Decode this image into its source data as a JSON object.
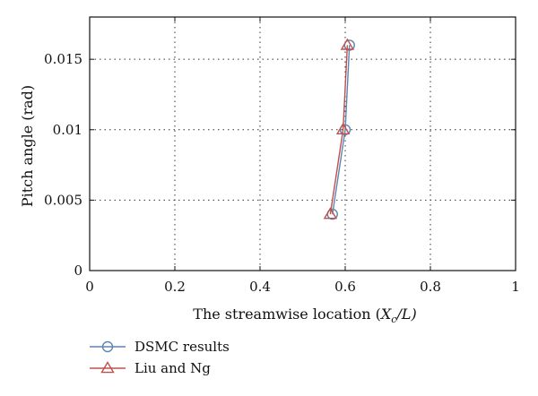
{
  "chart_data": {
    "type": "line",
    "title": "",
    "xlabel_prefix": "The streamwise location (",
    "xlabel_var": "X",
    "xlabel_sub": "c",
    "xlabel_suffix": "/L)",
    "ylabel": "Pitch angle (rad)",
    "xlim": [
      0,
      1
    ],
    "ylim": [
      0,
      0.018
    ],
    "x_ticks": [
      0,
      0.2,
      0.4,
      0.6,
      0.8,
      1
    ],
    "x_tick_labels": [
      "0",
      "0.2",
      "0.4",
      "0.6",
      "0.8",
      "1"
    ],
    "y_ticks": [
      0,
      0.005,
      0.01,
      0.015
    ],
    "y_tick_labels": [
      "0",
      "0.005",
      "0.01",
      "0.015"
    ],
    "grid": true,
    "legend_position": "bottom-left",
    "series": [
      {
        "name": "DSMC results",
        "marker": "circle",
        "color": "#5b86b4",
        "x": [
          0.57,
          0.6,
          0.61
        ],
        "y": [
          0.004,
          0.01,
          0.016
        ]
      },
      {
        "name": "Liu and Ng",
        "marker": "triangle",
        "color": "#c0504d",
        "x": [
          0.565,
          0.595,
          0.605
        ],
        "y": [
          0.004,
          0.01,
          0.016
        ]
      }
    ]
  }
}
